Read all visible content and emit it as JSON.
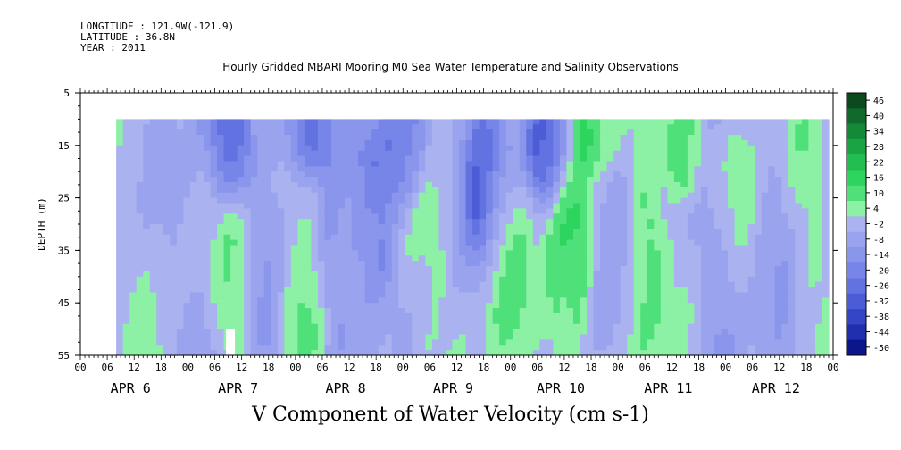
{
  "meta": {
    "longitude": "LONGITUDE : 121.9W(-121.9)",
    "latitude": "LATITUDE : 36.8N",
    "year": "YEAR : 2011"
  },
  "title": "Hourly Gridded MBARI Mooring M0 Sea Water Temperature and Salinity Observations",
  "bottom_title": "V Component of Water Velocity (cm s-1)",
  "chart_data": {
    "type": "heatmap",
    "title": "Hourly Gridded MBARI Mooring M0 Sea Water Temperature and Salinity Observations",
    "xlabel": "",
    "ylabel": "DEPTH (m)",
    "y_reversed": true,
    "ylim": [
      5,
      55
    ],
    "y_ticks": [
      5,
      15,
      25,
      35,
      45,
      55
    ],
    "data_depth_range": [
      10,
      55
    ],
    "x_hour_ticks": [
      "00",
      "06",
      "12",
      "18",
      "00",
      "06",
      "12",
      "18",
      "00",
      "06",
      "12",
      "18",
      "00",
      "06",
      "12",
      "18",
      "00",
      "06",
      "12",
      "18",
      "00",
      "06",
      "12",
      "18",
      "00",
      "06",
      "12",
      "18",
      "00"
    ],
    "x_day_labels": [
      "APR  6",
      "APR  7",
      "APR  8",
      "APR  9",
      "APR 10",
      "APR 11",
      "APR 12"
    ],
    "colorbar": {
      "labels": [
        "46",
        "40",
        "34",
        "28",
        "22",
        "16",
        "10",
        "4",
        "-2",
        "-8",
        "-14",
        "-20",
        "-26",
        "-32",
        "-38",
        "-44",
        "-50"
      ],
      "colors": [
        "#0b4a1f",
        "#0f6a2c",
        "#148a38",
        "#1aa544",
        "#22bf50",
        "#2dd45e",
        "#4fe07a",
        "#8cf0a5",
        "#aab2f0",
        "#9aa4ee",
        "#8a95ec",
        "#7785e8",
        "#6272e0",
        "#4c5cd6",
        "#3446c6",
        "#1f2fae",
        "#0b168a"
      ]
    },
    "velocity_pattern": [
      {
        "day": "APR 6",
        "hour": 8,
        "depth": [
          10,
          55
        ],
        "v_cm_s": 2
      },
      {
        "day": "APR 6",
        "hour": 18,
        "depth": [
          10,
          55
        ],
        "v_cm_s": 0
      },
      {
        "day": "APR 7",
        "hour": 2,
        "depth": [
          10,
          55
        ],
        "v_cm_s": -4
      },
      {
        "day": "APR 7",
        "hour": 9,
        "depth": [
          10,
          20
        ],
        "v_cm_s": -24
      },
      {
        "day": "APR 7",
        "hour": 10,
        "depth": [
          30,
          50
        ],
        "v_cm_s": 12
      },
      {
        "day": "APR 7",
        "hour": 18,
        "depth": [
          10,
          55
        ],
        "v_cm_s": -8
      },
      {
        "day": "APR 8",
        "hour": 0,
        "depth": [
          20,
          55
        ],
        "v_cm_s": 10
      },
      {
        "day": "APR 8",
        "hour": 2,
        "depth": [
          10,
          15
        ],
        "v_cm_s": -24
      },
      {
        "day": "APR 8",
        "hour": 10,
        "depth": [
          10,
          55
        ],
        "v_cm_s": -8
      },
      {
        "day": "APR 8",
        "hour": 16,
        "depth": [
          20,
          40
        ],
        "v_cm_s": -18
      },
      {
        "day": "APR 9",
        "hour": 0,
        "depth": [
          10,
          20
        ],
        "v_cm_s": -20
      },
      {
        "day": "APR 9",
        "hour": 4,
        "depth": [
          25,
          55
        ],
        "v_cm_s": 6
      },
      {
        "day": "APR 9",
        "hour": 18,
        "depth": [
          10,
          30
        ],
        "v_cm_s": -26
      },
      {
        "day": "APR 9",
        "hour": 22,
        "depth": [
          20,
          50
        ],
        "v_cm_s": 10
      },
      {
        "day": "APR 10",
        "hour": 8,
        "depth": [
          10,
          20
        ],
        "v_cm_s": -26
      },
      {
        "day": "APR 10",
        "hour": 12,
        "depth": [
          20,
          55
        ],
        "v_cm_s": 14
      },
      {
        "day": "APR 10",
        "hour": 18,
        "depth": [
          10,
          15
        ],
        "v_cm_s": 18
      },
      {
        "day": "APR 10",
        "hour": 22,
        "depth": [
          10,
          55
        ],
        "v_cm_s": -6
      },
      {
        "day": "APR 11",
        "hour": 4,
        "depth": [
          25,
          50
        ],
        "v_cm_s": 14
      },
      {
        "day": "APR 11",
        "hour": 14,
        "depth": [
          10,
          20
        ],
        "v_cm_s": 16
      },
      {
        "day": "APR 11",
        "hour": 22,
        "depth": [
          10,
          55
        ],
        "v_cm_s": -6
      },
      {
        "day": "APR 12",
        "hour": 2,
        "depth": [
          10,
          25
        ],
        "v_cm_s": 8
      },
      {
        "day": "APR 12",
        "hour": 10,
        "depth": [
          10,
          55
        ],
        "v_cm_s": -4
      },
      {
        "day": "APR 12",
        "hour": 18,
        "depth": [
          10,
          40
        ],
        "v_cm_s": 6
      }
    ]
  }
}
